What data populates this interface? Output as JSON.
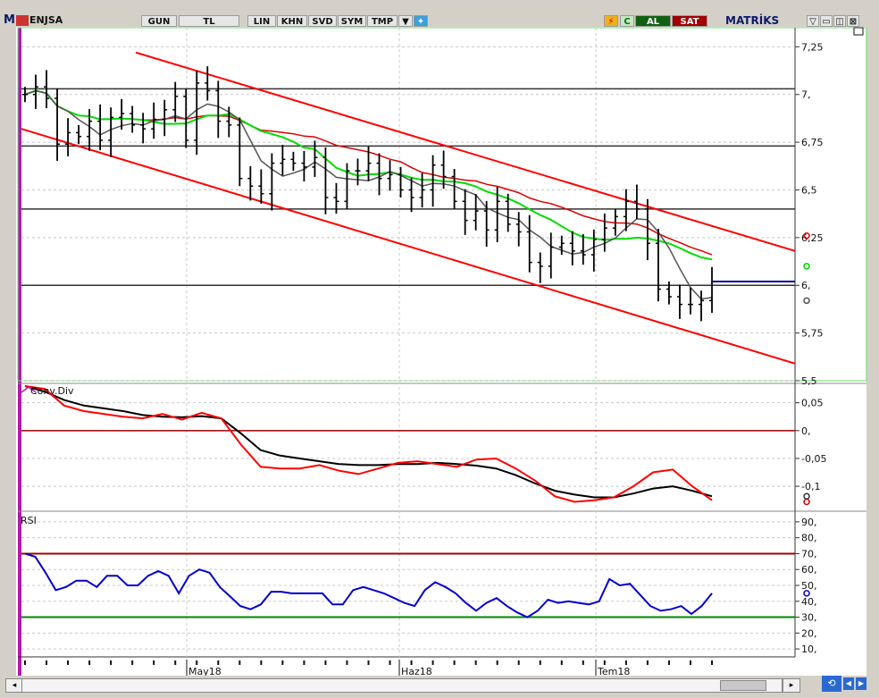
{
  "toolbar": {
    "logo": "M",
    "symbol": "ENJSA",
    "period": "GUN",
    "currency": "TL",
    "buttons": [
      "LIN",
      "KHN",
      "SVD",
      "SYM",
      "TMP"
    ],
    "c_label": "C",
    "buy_label": "AL",
    "sell_label": "SAT",
    "brand": "MATRİKS"
  },
  "colors": {
    "price": "#000000",
    "ma_short": "#555555",
    "ma_long": "#00dd00",
    "ma_trend": "#dd0000",
    "channel": "#ff0000",
    "macd": "#000000",
    "macd_signal": "#ff0000",
    "rsi": "#0000cc",
    "rsi_upper": "#aa0000",
    "rsi_lower": "#008800",
    "last_marker": "#00008b"
  },
  "chart_data": [
    {
      "type": "ohlc",
      "symbol": "ENJSA",
      "ylim": [
        5.5,
        7.35
      ],
      "y_ticks": [
        "7,25",
        "7,",
        "6,75",
        "6,5",
        "6,25",
        "6,",
        "5,75",
        "5,5"
      ],
      "x_labels": [
        "May18",
        "Haz18",
        "Tem18"
      ],
      "close": [
        7.0,
        7.04,
        6.98,
        6.74,
        6.8,
        6.78,
        6.86,
        6.76,
        6.88,
        6.9,
        6.84,
        6.82,
        6.87,
        6.92,
        6.99,
        6.76,
        7.06,
        7.02,
        6.86,
        6.84,
        6.56,
        6.52,
        6.48,
        6.64,
        6.66,
        6.64,
        6.62,
        6.67,
        6.46,
        6.44,
        6.6,
        6.6,
        6.64,
        6.56,
        6.58,
        6.5,
        6.46,
        6.5,
        6.63,
        6.57,
        6.44,
        6.34,
        6.39,
        6.29,
        6.44,
        6.32,
        6.28,
        6.12,
        6.1,
        6.2,
        6.22,
        6.18,
        6.16,
        6.24,
        6.3,
        6.36,
        6.44,
        6.4,
        6.22,
        5.98,
        5.94,
        5.9,
        5.9,
        5.92,
        6.02
      ],
      "indicators": {
        "ma_short_last": 5.92,
        "ma_long_last": 6.1,
        "ma_trend_last": 6.26,
        "horizontal_levels": [
          7.03,
          6.73,
          6.4,
          6.0
        ]
      }
    },
    {
      "type": "line",
      "title": "Conv.Div",
      "ylim": [
        -0.14,
        0.08
      ],
      "y_ticks": [
        "0,05",
        "0,",
        "-0,05",
        "-0,1"
      ],
      "series": [
        {
          "values": [
            0.08,
            0.07,
            0.055,
            0.045,
            0.04,
            0.035,
            0.028,
            0.025,
            0.024,
            0.026,
            0.022,
            -0.005,
            -0.035,
            -0.045,
            -0.05,
            -0.055,
            -0.06,
            -0.062,
            -0.062,
            -0.06,
            -0.06,
            -0.058,
            -0.06,
            -0.063,
            -0.068,
            -0.08,
            -0.095,
            -0.108,
            -0.115,
            -0.12,
            -0.12,
            -0.113,
            -0.104,
            -0.1,
            -0.108,
            -0.118
          ]
        },
        {
          "values": [
            0.08,
            0.075,
            0.045,
            0.035,
            0.03,
            0.025,
            0.022,
            0.03,
            0.02,
            0.032,
            0.022,
            -0.025,
            -0.065,
            -0.068,
            -0.068,
            -0.062,
            -0.072,
            -0.078,
            -0.068,
            -0.058,
            -0.055,
            -0.06,
            -0.065,
            -0.052,
            -0.05,
            -0.068,
            -0.09,
            -0.118,
            -0.128,
            -0.125,
            -0.12,
            -0.1,
            -0.075,
            -0.07,
            -0.1,
            -0.125
          ]
        }
      ]
    },
    {
      "type": "line",
      "title": "RSI",
      "ylim": [
        5,
        95
      ],
      "y_ticks": [
        "90,",
        "80,",
        "70,",
        "60,",
        "50,",
        "40,",
        "30,",
        "20,",
        "10,"
      ],
      "levels": [
        70,
        30
      ],
      "series": [
        {
          "values": [
            70,
            68,
            58,
            47,
            49,
            53,
            53,
            49,
            56,
            56,
            50,
            50,
            56,
            59,
            56,
            45,
            56,
            60,
            58,
            49,
            43,
            37,
            35,
            38,
            46,
            46,
            45,
            45,
            45,
            45,
            38,
            38,
            47,
            49,
            47,
            45,
            42,
            39,
            37,
            47,
            52,
            49,
            45,
            39,
            34,
            39,
            42,
            37,
            33,
            30,
            34,
            41,
            39,
            40,
            39,
            38,
            40,
            54,
            50,
            51,
            44,
            37,
            34,
            35,
            37,
            32,
            37,
            45
          ]
        }
      ]
    }
  ]
}
